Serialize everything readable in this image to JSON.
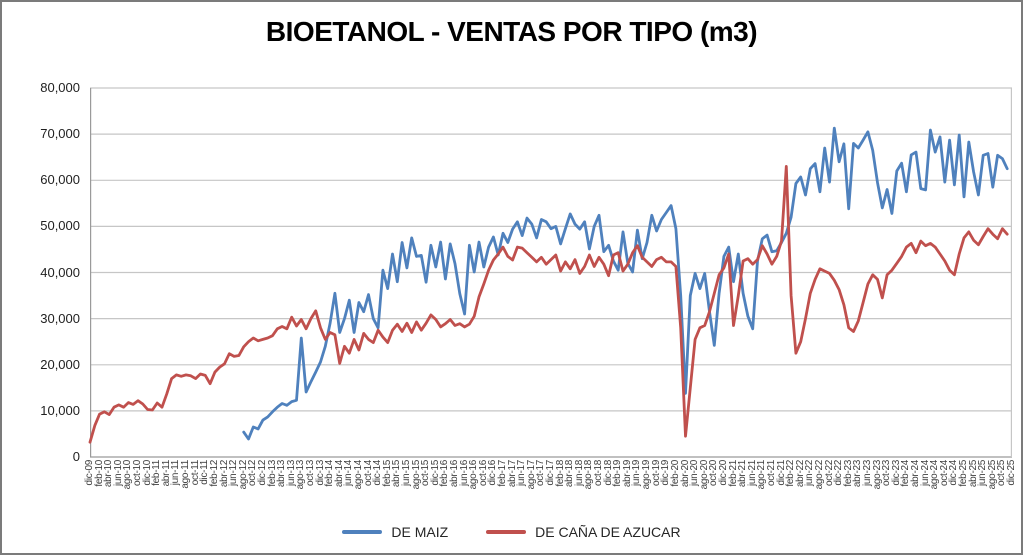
{
  "chart": {
    "title": "BIOETANOL - VENTAS POR TIPO (m3)"
  },
  "chart_data": {
    "type": "line",
    "title": "BIOETANOL - VENTAS POR TIPO (m3)",
    "xlabel": "",
    "ylabel": "",
    "ylim": [
      0,
      80000
    ],
    "grid": "horizontal",
    "legend_position": "bottom",
    "y_ticks": [
      "0",
      "10,000",
      "20,000",
      "30,000",
      "40,000",
      "50,000",
      "60,000",
      "70,000",
      "80,000"
    ],
    "x_label_interval_months": 2,
    "x_labels": [
      "dic-09",
      "feb-10",
      "abr-10",
      "jun-10",
      "ago-10",
      "oct-10",
      "dic-10",
      "feb-11",
      "abr-11",
      "jun-11",
      "ago-11",
      "oct-11",
      "dic-11",
      "feb-12",
      "abr-12",
      "jun-12",
      "ago-12",
      "oct-12",
      "dic-12",
      "feb-13",
      "abr-13",
      "jun-13",
      "ago-13",
      "oct-13",
      "dic-13",
      "feb-14",
      "abr-14",
      "jun-14",
      "ago-14",
      "oct-14",
      "dic-14",
      "feb-15",
      "abr-15",
      "jun-15",
      "ago-15",
      "oct-15",
      "dic-15",
      "feb-16",
      "abr-16",
      "jun-16",
      "ago-16",
      "oct-16",
      "dic-16",
      "feb-17",
      "abr-17",
      "jun-17",
      "ago-17",
      "oct-17",
      "dic-17",
      "feb-18",
      "abr-18",
      "jun-18",
      "ago-18",
      "oct-18",
      "dic-18",
      "feb-19",
      "abr-19",
      "jun-19",
      "ago-19",
      "oct-19",
      "dic-19",
      "feb-20",
      "abr-20",
      "jun-20",
      "ago-20",
      "oct-20",
      "dic-20",
      "feb-21",
      "abr-21",
      "jun-21",
      "ago-21",
      "oct-21",
      "dic-21",
      "feb-22",
      "abr-22",
      "jun-22",
      "ago-22",
      "oct-22",
      "dic-22",
      "feb-23",
      "abr-23",
      "jun-23",
      "ago-23",
      "oct-23",
      "dic-23",
      "feb-24",
      "abr-24",
      "jun-24",
      "ago-24",
      "oct-24",
      "dic-24",
      "feb-25",
      "abr-25",
      "jun-25",
      "ago-25",
      "oct-25",
      "dic-25"
    ],
    "series": [
      {
        "name": "DE MAIZ",
        "color": "#4F81BD",
        "values": [
          null,
          null,
          null,
          null,
          null,
          null,
          null,
          null,
          null,
          null,
          null,
          null,
          null,
          null,
          null,
          null,
          null,
          null,
          null,
          null,
          null,
          null,
          null,
          null,
          null,
          null,
          null,
          null,
          null,
          null,
          null,
          null,
          5400,
          3900,
          6500,
          6100,
          8000,
          8700,
          9800,
          10800,
          11600,
          11200,
          12000,
          12300,
          25800,
          14100,
          16300,
          18400,
          20600,
          24000,
          29000,
          35500,
          27000,
          30000,
          34000,
          27000,
          33500,
          31500,
          35200,
          30000,
          28000,
          40500,
          36500,
          44000,
          38000,
          46500,
          41000,
          47500,
          43500,
          43700,
          37900,
          45900,
          41200,
          46600,
          38600,
          46200,
          41900,
          35400,
          31000,
          45900,
          40100,
          46600,
          41200,
          45500,
          47700,
          43800,
          48500,
          46500,
          49400,
          51000,
          48000,
          51800,
          50500,
          47500,
          51500,
          51000,
          49500,
          50000,
          46200,
          49500,
          52700,
          50500,
          49400,
          51000,
          45100,
          50000,
          52400,
          44500,
          45900,
          42500,
          40500,
          48800,
          42000,
          40100,
          49200,
          43000,
          46500,
          52400,
          49000,
          51500,
          53000,
          54500,
          49500,
          35000,
          13800,
          35000,
          39800,
          36500,
          39800,
          31500,
          24200,
          35500,
          43500,
          45500,
          38000,
          44000,
          35500,
          30500,
          27800,
          42500,
          47300,
          48100,
          44500,
          44700,
          46500,
          48500,
          52000,
          59300,
          60700,
          56800,
          62500,
          63600,
          57500,
          67000,
          59600,
          71300,
          64000,
          67900,
          53800,
          68000,
          67000,
          68700,
          70500,
          66500,
          59500,
          54000,
          58000,
          52800,
          62000,
          63700,
          57500,
          65500,
          66100,
          58200,
          57900,
          70900,
          66100,
          69400,
          59600,
          68700,
          59000,
          69800,
          56400,
          68300,
          61800,
          56800,
          65400,
          65800,
          58500,
          65400,
          64700,
          62500,
          null
        ]
      },
      {
        "name": "DE CAÑA DE AZUCAR",
        "color": "#C0504D",
        "values": [
          3200,
          6800,
          9300,
          9800,
          9200,
          10800,
          11300,
          10800,
          11800,
          11400,
          12200,
          11500,
          10300,
          10200,
          11700,
          10800,
          13700,
          17000,
          17800,
          17500,
          17800,
          17600,
          17000,
          18000,
          17700,
          15900,
          18400,
          19500,
          20200,
          22400,
          21800,
          22000,
          23900,
          25000,
          25800,
          25200,
          25500,
          25800,
          26300,
          27800,
          28300,
          27800,
          30300,
          28400,
          29800,
          27800,
          30000,
          31700,
          28000,
          25500,
          27000,
          26500,
          20300,
          24000,
          22500,
          25500,
          23200,
          26800,
          25500,
          24800,
          27500,
          26000,
          24800,
          27500,
          28800,
          27200,
          29000,
          27000,
          29300,
          27500,
          29000,
          30800,
          29800,
          28200,
          28900,
          29800,
          28500,
          28900,
          28200,
          28800,
          30500,
          34700,
          37500,
          40500,
          42700,
          44000,
          45500,
          43500,
          42700,
          45500,
          45300,
          44300,
          43300,
          42300,
          43300,
          41800,
          42800,
          43800,
          40300,
          42300,
          40800,
          42800,
          39800,
          41300,
          43800,
          41300,
          43300,
          41800,
          39300,
          43800,
          44300,
          40300,
          41800,
          44300,
          45800,
          43300,
          42300,
          41300,
          42800,
          43300,
          42300,
          42300,
          41300,
          28000,
          4500,
          15000,
          25500,
          28000,
          28500,
          31500,
          35500,
          39500,
          41000,
          44000,
          28500,
          35000,
          42500,
          43000,
          41800,
          42800,
          45800,
          44000,
          41800,
          43500,
          46800,
          63000,
          35000,
          22500,
          25000,
          30000,
          35500,
          38500,
          40800,
          40300,
          39800,
          38300,
          36300,
          33000,
          28000,
          27200,
          29500,
          33500,
          37500,
          39500,
          38500,
          34500,
          39500,
          40500,
          42000,
          43500,
          45500,
          46300,
          44300,
          46800,
          45800,
          46300,
          45500,
          44000,
          42500,
          40500,
          39500,
          44000,
          47500,
          48800,
          47000,
          46000,
          47800,
          49500,
          48300,
          47300,
          49500,
          48300,
          null
        ]
      }
    ],
    "style": {
      "gridline_color": "#c6c6c6",
      "axis_color": "#9a9a9a",
      "tick_label_color": "#3f3f3f",
      "background": "#ffffff"
    }
  }
}
